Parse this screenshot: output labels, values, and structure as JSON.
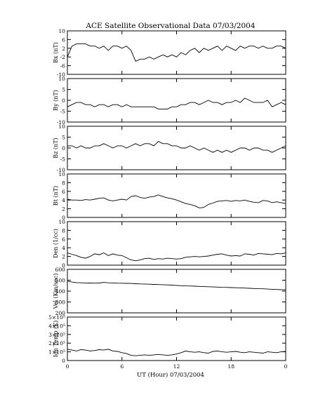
{
  "title": "ACE Satellite Observational Data   07/03/2004",
  "xlabel": "UT (Hour)   07/03/2004",
  "chart_data": [
    {
      "type": "line",
      "ylabel": "Bx (nT)",
      "ylim": [
        -10,
        10
      ],
      "yticks": [
        "10",
        "6",
        "2",
        "-2",
        "-6",
        "-10"
      ],
      "xlim": [
        0,
        24
      ],
      "series": [
        {
          "x": [
            0,
            0.5,
            1,
            1.5,
            2,
            2.5,
            3,
            3.5,
            4,
            4.5,
            5,
            5.5,
            6,
            6.5,
            7,
            7.5,
            8,
            8.5,
            9,
            9.5,
            10,
            10.5,
            11,
            11.5,
            12,
            12.5,
            13,
            13.5,
            14,
            14.5,
            15,
            15.5,
            16,
            16.5,
            17,
            17.5,
            18,
            18.5,
            19,
            19.5,
            20,
            20.5,
            21,
            21.5,
            22,
            22.5,
            23,
            23.5,
            24
          ],
          "values": [
            -2,
            3,
            4,
            4,
            4,
            3,
            3,
            2,
            3,
            1,
            3,
            3,
            2,
            3,
            1,
            -4,
            -3,
            -3,
            -2,
            -3,
            -2,
            -1,
            -2,
            -1,
            -2,
            0,
            -1,
            1,
            2,
            0,
            2,
            1,
            2,
            3,
            1,
            3,
            2,
            1,
            3,
            2,
            3,
            3,
            2,
            3,
            2,
            2,
            3,
            3,
            2
          ]
        }
      ]
    },
    {
      "type": "line",
      "ylabel": "By (nT)",
      "ylim": [
        -10,
        10
      ],
      "yticks": [
        "10",
        "5",
        "0",
        "-5",
        "-10"
      ],
      "xlim": [
        0,
        24
      ],
      "series": [
        {
          "x": [
            0,
            0.5,
            1,
            1.5,
            2,
            2.5,
            3,
            3.5,
            4,
            4.5,
            5,
            5.5,
            6,
            6.5,
            7,
            7.5,
            8,
            8.5,
            9,
            9.5,
            10,
            10.5,
            11,
            11.5,
            12,
            12.5,
            13,
            13.5,
            14,
            14.5,
            15,
            15.5,
            16,
            16.5,
            17,
            17.5,
            18,
            18.5,
            19,
            19.5,
            20,
            20.5,
            21,
            21.5,
            22,
            22.5,
            23,
            23.5,
            24
          ],
          "values": [
            -3,
            -2,
            -1,
            -1,
            -2,
            -2,
            -3,
            -2,
            -2,
            -3,
            -2,
            -2,
            -3,
            -2,
            -3,
            -3,
            -3,
            -3,
            -3,
            -3,
            -4,
            -4,
            -4,
            -3,
            -3,
            -2,
            -2,
            -1,
            -1,
            -2,
            -1,
            0,
            -1,
            -1,
            -2,
            -1,
            -1,
            0,
            -1,
            1,
            0,
            -1,
            -1,
            -1,
            0,
            -3,
            -2,
            -1,
            -2
          ]
        }
      ]
    },
    {
      "type": "line",
      "ylabel": "Bz (nT)",
      "ylim": [
        -10,
        10
      ],
      "yticks": [
        "10",
        "5",
        "0",
        "-5",
        "-10"
      ],
      "xlim": [
        0,
        24
      ],
      "series": [
        {
          "x": [
            0,
            0.5,
            1,
            1.5,
            2,
            2.5,
            3,
            3.5,
            4,
            4.5,
            5,
            5.5,
            6,
            6.5,
            7,
            7.5,
            8,
            8.5,
            9,
            9.5,
            10,
            10.5,
            11,
            11.5,
            12,
            12.5,
            13,
            13.5,
            14,
            14.5,
            15,
            15.5,
            16,
            16.5,
            17,
            17.5,
            18,
            18.5,
            19,
            19.5,
            20,
            20.5,
            21,
            21.5,
            22,
            22.5,
            23,
            23.5,
            24
          ],
          "values": [
            1,
            1,
            0,
            1,
            0,
            0,
            1,
            1,
            2,
            1,
            0,
            1,
            1,
            0,
            1,
            2,
            1,
            2,
            2,
            1,
            3,
            2,
            2,
            1,
            1,
            0,
            0,
            1,
            0,
            -1,
            0,
            -1,
            -2,
            -1,
            -2,
            -1,
            -2,
            -1,
            0,
            0,
            -1,
            0,
            0,
            -1,
            -1,
            -2,
            -1,
            0,
            1
          ]
        }
      ]
    },
    {
      "type": "line",
      "ylabel": "Bt (nT)",
      "ylim": [
        0,
        10
      ],
      "yticks": [
        "10",
        "8",
        "6",
        "4",
        "2",
        "0"
      ],
      "xlim": [
        0,
        24
      ],
      "series": [
        {
          "x": [
            0,
            0.5,
            1,
            1.5,
            2,
            2.5,
            3,
            3.5,
            4,
            4.5,
            5,
            5.5,
            6,
            6.5,
            7,
            7.5,
            8,
            8.5,
            9,
            9.5,
            10,
            10.5,
            11,
            11.5,
            12,
            12.5,
            13,
            13.5,
            14,
            14.5,
            15,
            15.5,
            16,
            16.5,
            17,
            17.5,
            18,
            18.5,
            19,
            19.5,
            20,
            20.5,
            21,
            21.5,
            22,
            22.5,
            23,
            23.5,
            24
          ],
          "values": [
            4.2,
            4.0,
            4.0,
            3.9,
            4.1,
            4.0,
            4.2,
            4.4,
            4.5,
            4.0,
            3.8,
            4.0,
            4.2,
            4.0,
            4.8,
            5.0,
            4.6,
            4.4,
            4.7,
            4.8,
            5.2,
            4.8,
            4.5,
            4.3,
            4.0,
            3.6,
            3.2,
            3.0,
            2.7,
            2.2,
            2.3,
            3.0,
            3.3,
            3.7,
            3.8,
            3.9,
            3.7,
            3.9,
            3.8,
            4.0,
            3.7,
            3.5,
            3.4,
            3.9,
            3.8,
            3.4,
            3.6,
            3.4,
            3.2
          ]
        }
      ]
    },
    {
      "type": "line",
      "ylabel": "Den (1/cc)",
      "ylim": [
        0,
        10
      ],
      "yticks": [
        "10",
        "8",
        "6",
        "4",
        "2",
        "0"
      ],
      "xlim": [
        0,
        24
      ],
      "series": [
        {
          "x": [
            0,
            0.5,
            1,
            1.5,
            2,
            2.5,
            3,
            3.5,
            4,
            4.5,
            5,
            5.5,
            6,
            6.5,
            7,
            7.5,
            8,
            8.5,
            9,
            9.5,
            10,
            10.5,
            11,
            11.5,
            12,
            12.5,
            13,
            13.5,
            14,
            14.5,
            15,
            15.5,
            16,
            16.5,
            17,
            17.5,
            18,
            18.5,
            19,
            19.5,
            20,
            20.5,
            21,
            21.5,
            22,
            22.5,
            23,
            23.5,
            24
          ],
          "values": [
            2.8,
            2.5,
            2.2,
            1.8,
            1.6,
            2.0,
            2.6,
            2.4,
            2.8,
            2.2,
            2.6,
            2.3,
            2.2,
            1.7,
            1.2,
            1.0,
            1.2,
            1.5,
            1.6,
            1.3,
            1.5,
            1.4,
            1.6,
            1.5,
            1.4,
            1.5,
            1.8,
            1.9,
            2.0,
            1.9,
            2.0,
            2.1,
            2.3,
            2.5,
            2.6,
            2.3,
            2.1,
            2.2,
            2.1,
            2.6,
            2.5,
            2.3,
            2.7,
            2.6,
            2.5,
            2.4,
            2.7,
            2.6,
            2.8
          ]
        }
      ]
    },
    {
      "type": "line",
      "ylabel": "Vel (Km/sec)",
      "ylim": [
        200,
        600
      ],
      "yticks": [
        "600",
        "500",
        "400",
        "300",
        "200"
      ],
      "xlim": [
        0,
        24
      ],
      "series": [
        {
          "x": [
            0,
            0.5,
            1,
            1.5,
            2,
            2.5,
            3,
            3.5,
            4,
            4.5,
            5,
            5.5,
            6,
            6.5,
            7,
            7.5,
            8,
            8.5,
            9,
            9.5,
            10,
            10.5,
            11,
            11.5,
            12,
            12.5,
            13,
            13.5,
            14,
            14.5,
            15,
            15.5,
            16,
            16.5,
            17,
            17.5,
            18,
            18.5,
            19,
            19.5,
            20,
            20.5,
            21,
            21.5,
            22,
            22.5,
            23,
            23.5,
            24
          ],
          "values": [
            490,
            483,
            478,
            476,
            475,
            474,
            473,
            474,
            480,
            476,
            475,
            473,
            472,
            471,
            470,
            468,
            466,
            465,
            463,
            461,
            460,
            459,
            457,
            455,
            452,
            450,
            448,
            447,
            445,
            443,
            441,
            440,
            438,
            437,
            435,
            434,
            432,
            431,
            430,
            428,
            426,
            424,
            422,
            421,
            419,
            417,
            415,
            413,
            412
          ]
        }
      ]
    },
    {
      "type": "line",
      "ylabel": "Ion Temp (K)",
      "ylim": [
        0,
        500000
      ],
      "yticks": [
        "5×10⁵",
        "4×10⁵",
        "3×10⁵",
        "2×10⁵",
        "1×10⁵",
        "0"
      ],
      "xlim": [
        0,
        24
      ],
      "xticks": [
        "0",
        "6",
        "12",
        "18",
        "0"
      ],
      "series": [
        {
          "x": [
            0,
            0.5,
            1,
            1.5,
            2,
            2.5,
            3,
            3.5,
            4,
            4.5,
            5,
            5.5,
            6,
            6.5,
            7,
            7.5,
            8,
            8.5,
            9,
            9.5,
            10,
            10.5,
            11,
            11.5,
            12,
            12.5,
            13,
            13.5,
            14,
            14.5,
            15,
            15.5,
            16,
            16.5,
            17,
            17.5,
            18,
            18.5,
            19,
            19.5,
            20,
            20.5,
            21,
            21.5,
            22,
            22.5,
            23,
            23.5,
            24
          ],
          "values": [
            130000,
            120000,
            110000,
            125000,
            120000,
            110000,
            115000,
            125000,
            120000,
            130000,
            110000,
            105000,
            90000,
            80000,
            60000,
            55000,
            60000,
            65000,
            60000,
            65000,
            70000,
            65000,
            60000,
            65000,
            75000,
            90000,
            110000,
            100000,
            95000,
            100000,
            90000,
            85000,
            105000,
            110000,
            100000,
            95000,
            100000,
            105000,
            95000,
            90000,
            100000,
            95000,
            90000,
            85000,
            100000,
            95000,
            90000,
            100000,
            105000
          ]
        }
      ]
    }
  ]
}
